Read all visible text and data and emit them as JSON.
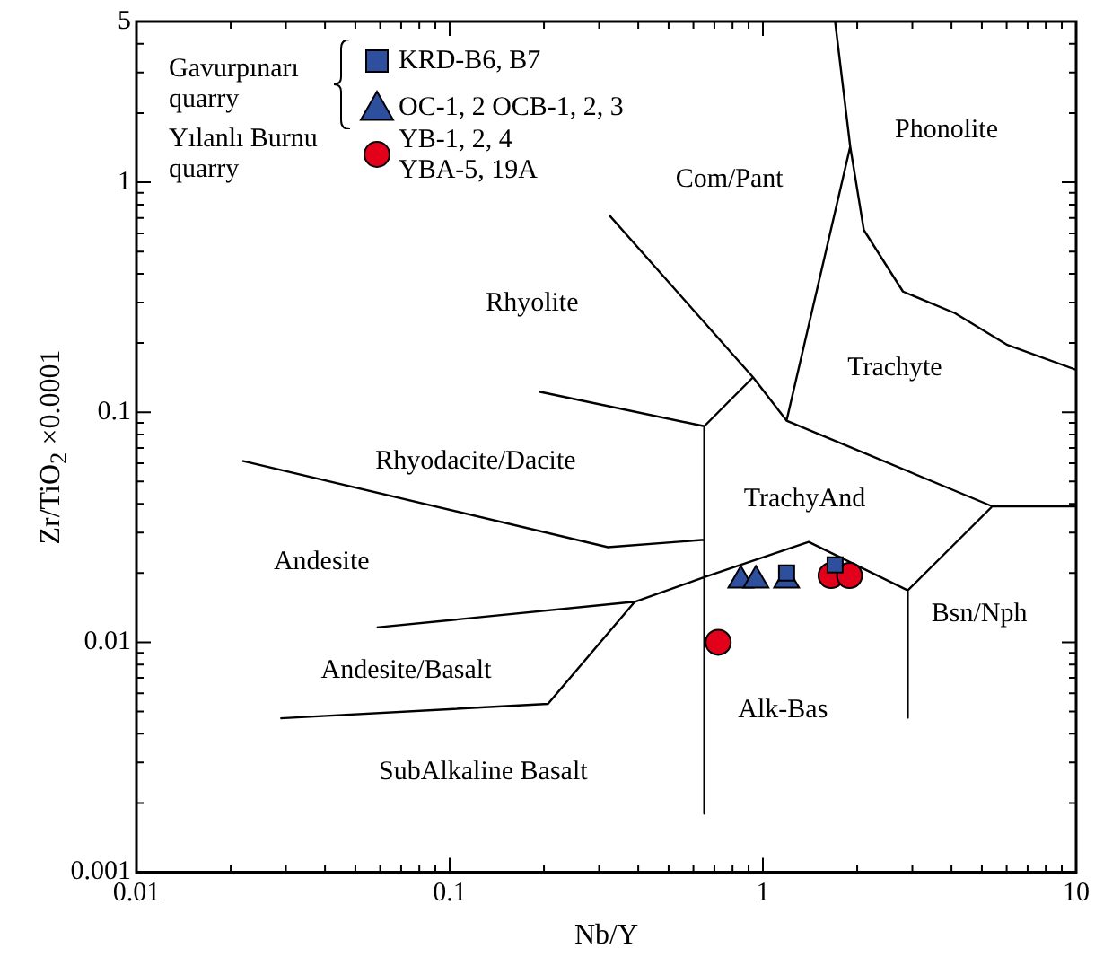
{
  "chart_data": {
    "type": "scatter",
    "xlabel": "Nb/Y",
    "ylabel": "Zr/TiO$_{2}$ ×0.0001",
    "log": "xy",
    "grid": false,
    "legend": "top left",
    "xlim": [
      0.01,
      10
    ],
    "ylim": [
      0.001,
      5
    ],
    "xticks": [
      0.01,
      {
        "value": 0.02,
        "label": null
      },
      {
        "value": 0.03,
        "label": null
      },
      {
        "value": 0.04,
        "label": null
      },
      {
        "value": 0.05,
        "label": null
      },
      {
        "value": 0.06,
        "label": null
      },
      {
        "value": 0.07,
        "label": null
      },
      {
        "value": 0.08,
        "label": null
      },
      {
        "value": 0.09,
        "label": null
      },
      0.1,
      {
        "value": 0.2,
        "label": null
      },
      {
        "value": 0.3,
        "label": null
      },
      {
        "value": 0.4,
        "label": null
      },
      {
        "value": 0.5,
        "label": null
      },
      {
        "value": 0.6,
        "label": null
      },
      {
        "value": 0.7,
        "label": null
      },
      {
        "value": 0.8,
        "label": null
      },
      {
        "value": 0.9,
        "label": null
      },
      1,
      {
        "value": 2,
        "label": null
      },
      {
        "value": 3,
        "label": null
      },
      {
        "value": 4,
        "label": null
      },
      {
        "value": 5,
        "label": null
      },
      {
        "value": 6,
        "label": null
      },
      {
        "value": 7,
        "label": null
      },
      {
        "value": 8,
        "label": null
      },
      {
        "value": 9,
        "label": null
      },
      10
    ],
    "yticks": [
      0.001,
      {
        "value": 0.002,
        "label": null
      },
      {
        "value": 0.003,
        "label": null
      },
      {
        "value": 0.004,
        "label": null
      },
      {
        "value": 0.005,
        "label": null
      },
      {
        "value": 0.006,
        "label": null
      },
      {
        "value": 0.007,
        "label": null
      },
      {
        "value": 0.008,
        "label": null
      },
      {
        "value": 0.009,
        "label": null
      },
      0.01,
      {
        "value": 0.02,
        "label": null
      },
      {
        "value": 0.03,
        "label": null
      },
      {
        "value": 0.04,
        "label": null
      },
      {
        "value": 0.05,
        "label": null
      },
      {
        "value": 0.06,
        "label": null
      },
      {
        "value": 0.07,
        "label": null
      },
      {
        "value": 0.08,
        "label": null
      },
      {
        "value": 0.09,
        "label": null
      },
      0.1,
      {
        "value": 0.2,
        "label": null
      },
      {
        "value": 0.3,
        "label": null
      },
      {
        "value": 0.4,
        "label": null
      },
      {
        "value": 0.5,
        "label": null
      },
      {
        "value": 0.6,
        "label": null
      },
      {
        "value": 0.7,
        "label": null
      },
      {
        "value": 0.8,
        "label": null
      },
      {
        "value": 0.9,
        "label": null
      },
      1,
      {
        "value": 2,
        "label": null
      },
      {
        "value": 3,
        "label": null
      },
      {
        "value": 4,
        "label": null
      },
      5
    ],
    "series": [
      {
        "name": "KRD-B6, B7",
        "marker": "square",
        "color": "#2e4f9e",
        "x": [
          1.19,
          1.7
        ],
        "values": [
          0.02,
          0.0217
        ]
      },
      {
        "name": "OC-1, 2 OCB-1, 2, 3",
        "marker": "triangle",
        "color": "#2e4f9e",
        "x": [
          0.85,
          0.95,
          1.19
        ],
        "values": [
          0.0186,
          0.0186,
          0.0186
        ]
      },
      {
        "name": "YB-1, 2, 4\nYBA-5, 19A",
        "marker": "circle",
        "color": "#e3001b",
        "x": [
          0.72,
          1.65,
          1.89
        ],
        "values": [
          0.01,
          0.0195,
          0.0195
        ]
      },
      {
        "type": "line",
        "marker": "none",
        "color": "#000000",
        "x": [
          0.323,
          0.93,
          1.19,
          1.9,
          1.7,
          null,
          1.9,
          2.1,
          2.8,
          4.1,
          6.0,
          10,
          null,
          0.93,
          0.65,
          0.65,
          null,
          0.193,
          0.65,
          null,
          1.19,
          5.4,
          10,
          null,
          5.4,
          2.9,
          2.9,
          null,
          0.65,
          1.4,
          2.9,
          null,
          0.0218,
          0.32,
          0.65,
          null,
          0.0585,
          0.39,
          0.65,
          null,
          0.0288,
          0.206,
          0.39
        ],
        "values": [
          0.72,
          0.142,
          0.092,
          1.43,
          5,
          null,
          1.43,
          0.62,
          0.335,
          0.27,
          0.197,
          0.153,
          null,
          0.142,
          0.087,
          0.0018,
          null,
          0.123,
          0.087,
          null,
          0.092,
          0.039,
          0.039,
          null,
          0.039,
          0.0168,
          0.0047,
          null,
          0.0192,
          0.0273,
          0.0168,
          null,
          0.0615,
          0.0259,
          0.0279,
          null,
          0.0116,
          0.015,
          0.0192,
          null,
          0.00467,
          0.0054,
          0.015
        ]
      }
    ],
    "annotations": [
      "Phonolite",
      "Com/Pant",
      "Rhyolite",
      "Trachyte",
      "Rhyodacite/Dacite",
      "TrachyAnd",
      "Andesite",
      "Andesite/Basalt",
      "Bsn/Nph",
      "Alk-Bas",
      "SubAlkaline Basalt",
      "Gavurpınarı\nquarry",
      "Yılanlı Burnu\nquarry"
    ]
  }
}
